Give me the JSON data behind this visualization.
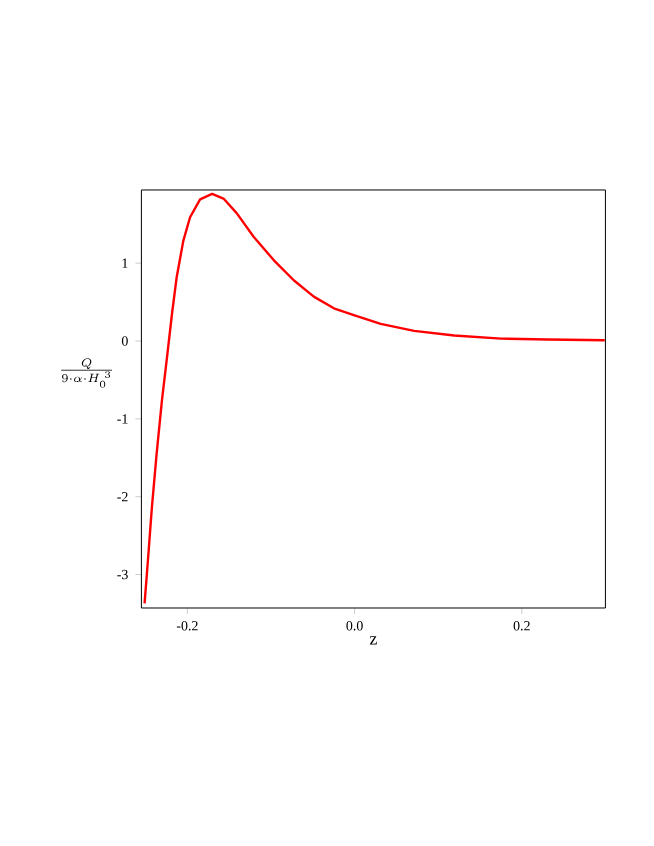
{
  "chart_data": {
    "type": "line",
    "xlabel": "z",
    "ylabel": "\\frac{Q}{9\\cdot\\alpha\\cdot H_0^{\\;3}}",
    "x": [
      -0.2512,
      -0.2472,
      -0.2424,
      -0.2368,
      -0.2304,
      -0.2248,
      -0.2184,
      -0.2128,
      -0.2048,
      -0.1968,
      -0.1848,
      -0.1704,
      -0.1568,
      -0.1408,
      -0.1208,
      -0.0968,
      -0.0728,
      -0.0488,
      -0.0248,
      0,
      0.0312,
      0.0712,
      0.1192,
      0.1752,
      0.2312,
      0.2992
    ],
    "series": [
      {
        "color": "#ff0000",
        "values": [
          -3.37,
          -2.82,
          -2.13,
          -1.45,
          -0.76,
          -0.25,
          0.35,
          0.82,
          1.29,
          1.59,
          1.82,
          1.89,
          1.83,
          1.64,
          1.34,
          1.04,
          0.78,
          0.57,
          0.42,
          0.33,
          0.22,
          0.13,
          0.07,
          0.03,
          0.02,
          0.01
        ]
      }
    ],
    "xlim": [
      -0.255,
      0.3
    ],
    "ylim": [
      -3.43,
      1.94
    ],
    "xticks": [
      -0.2,
      {
        "value": 0,
        "label": "0.0"
      },
      0.2
    ],
    "yticks": [
      -3,
      -2,
      -1,
      0,
      1
    ],
    "grid": false
  }
}
